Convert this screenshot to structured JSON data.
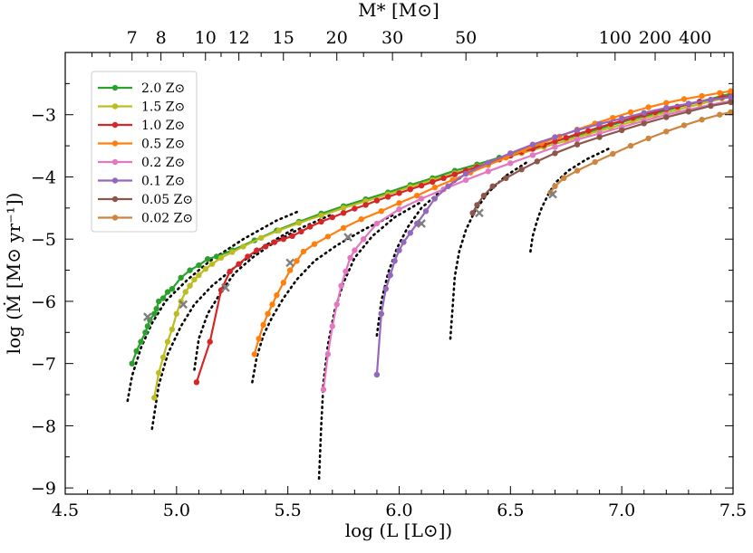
{
  "chart_data": {
    "type": "line",
    "title": "",
    "xlabel": "log (L [L⊙])",
    "ylabel": "log (Ṁ [M⊙ yr⁻¹])",
    "top_xlabel": "M* [M⊙]",
    "xlim": [
      4.5,
      7.5
    ],
    "ylim": [
      -9.1,
      -2.0
    ],
    "x_ticks": [
      4.5,
      5.0,
      5.5,
      6.0,
      6.5,
      7.0,
      7.5
    ],
    "x_tick_labels": [
      "4.5",
      "5.0",
      "5.5",
      "6.0",
      "6.5",
      "7.0",
      "7.5"
    ],
    "y_ticks": [
      -9,
      -8,
      -7,
      -6,
      -5,
      -4,
      -3
    ],
    "y_tick_labels": [
      "−9",
      "−8",
      "−7",
      "−6",
      "−5",
      "−4",
      "−3"
    ],
    "top_ticks_logL": [
      4.8,
      4.93,
      5.13,
      5.28,
      5.48,
      5.72,
      5.97,
      6.3,
      6.97,
      7.33
    ],
    "top_tick_labels": [
      "7",
      "8",
      "10",
      "12",
      "15",
      "20",
      "30",
      "50",
      "100",
      "400"
    ],
    "top_extra_labels": [
      {
        "label": "200",
        "logL": 7.15
      }
    ],
    "legend": {
      "position": "top-left"
    },
    "series": [
      {
        "name": "2.0 Z⊙",
        "color": "#2ca02c",
        "x": [
          4.8,
          4.82,
          4.84,
          4.86,
          4.87,
          4.88,
          4.9,
          4.91,
          4.92,
          4.94,
          4.96,
          4.98,
          5.02,
          5.06,
          5.1,
          5.14,
          5.18,
          5.25,
          5.35,
          5.45,
          5.55,
          5.65,
          5.75,
          5.85,
          5.95,
          6.05,
          6.15,
          6.25,
          6.35,
          6.45,
          6.55,
          6.65,
          6.75,
          6.85,
          6.95,
          7.05,
          7.15,
          7.25,
          7.35,
          7.45,
          7.49
        ],
        "y": [
          -7.0,
          -6.8,
          -6.65,
          -6.5,
          -6.4,
          -6.3,
          -6.2,
          -6.12,
          -6.0,
          -5.95,
          -5.85,
          -5.8,
          -5.62,
          -5.5,
          -5.42,
          -5.32,
          -5.28,
          -5.18,
          -5.02,
          -4.86,
          -4.72,
          -4.59,
          -4.47,
          -4.36,
          -4.25,
          -4.13,
          -4.02,
          -3.9,
          -3.8,
          -3.69,
          -3.59,
          -3.48,
          -3.38,
          -3.28,
          -3.17,
          -3.07,
          -2.98,
          -2.88,
          -2.79,
          -2.7,
          -2.66
        ],
        "track_x": [
          4.78,
          4.8,
          4.84,
          4.89,
          4.95,
          5.05,
          5.15,
          5.3,
          5.45,
          5.55
        ],
        "track_y": [
          -7.6,
          -7.2,
          -6.75,
          -6.35,
          -6.0,
          -5.65,
          -5.35,
          -5.0,
          -4.7,
          -4.55
        ]
      },
      {
        "name": "1.5 Z⊙",
        "color": "#bcbd22",
        "x": [
          4.9,
          4.92,
          4.94,
          4.96,
          4.98,
          5.0,
          5.02,
          5.04,
          5.06,
          5.08,
          5.1,
          5.13,
          5.16,
          5.2,
          5.25,
          5.3,
          5.38,
          5.46,
          5.55,
          5.65,
          5.75,
          5.85,
          5.95,
          6.05,
          6.15,
          6.25,
          6.35,
          6.45,
          6.55,
          6.65,
          6.75,
          6.85,
          6.95,
          7.05,
          7.15,
          7.25,
          7.35,
          7.45,
          7.49
        ],
        "y": [
          -7.55,
          -7.15,
          -6.9,
          -6.65,
          -6.45,
          -6.2,
          -6.0,
          -5.85,
          -5.75,
          -5.65,
          -5.58,
          -5.48,
          -5.4,
          -5.3,
          -5.21,
          -5.12,
          -4.98,
          -4.86,
          -4.74,
          -4.62,
          -4.5,
          -4.39,
          -4.28,
          -4.16,
          -4.05,
          -3.94,
          -3.83,
          -3.72,
          -3.62,
          -3.52,
          -3.42,
          -3.31,
          -3.21,
          -3.11,
          -3.01,
          -2.92,
          -2.83,
          -2.74,
          -2.7
        ],
        "track_x": [
          4.89,
          4.92,
          4.96,
          5.02,
          5.08,
          5.16,
          5.28,
          5.4,
          5.52
        ],
        "track_y": [
          -8.05,
          -7.35,
          -6.85,
          -6.4,
          -6.05,
          -5.75,
          -5.4,
          -5.1,
          -4.85
        ]
      },
      {
        "name": "1.0 Z⊙",
        "color": "#d62728",
        "x": [
          5.09,
          5.15,
          5.2,
          5.24,
          5.28,
          5.32,
          5.36,
          5.4,
          5.44,
          5.48,
          5.52,
          5.56,
          5.6,
          5.65,
          5.7,
          5.75,
          5.8,
          5.85,
          5.9,
          5.95,
          6.0,
          6.05,
          6.1,
          6.15,
          6.2,
          6.25,
          6.3,
          6.35,
          6.4,
          6.45,
          6.5,
          6.55,
          6.6,
          6.65,
          6.7,
          6.75,
          6.8,
          6.85,
          6.9,
          6.95,
          7.0,
          7.05,
          7.1,
          7.15,
          7.2,
          7.25,
          7.3,
          7.35,
          7.4,
          7.45,
          7.49
        ],
        "y": [
          -7.3,
          -6.65,
          -5.82,
          -5.52,
          -5.4,
          -5.28,
          -5.18,
          -5.12,
          -5.05,
          -5.0,
          -4.95,
          -4.88,
          -4.8,
          -4.72,
          -4.65,
          -4.58,
          -4.51,
          -4.45,
          -4.38,
          -4.32,
          -4.26,
          -4.2,
          -4.14,
          -4.08,
          -4.02,
          -3.96,
          -3.9,
          -3.84,
          -3.78,
          -3.72,
          -3.66,
          -3.6,
          -3.55,
          -3.49,
          -3.43,
          -3.37,
          -3.31,
          -3.26,
          -3.2,
          -3.15,
          -3.1,
          -3.05,
          -3.0,
          -2.96,
          -2.91,
          -2.87,
          -2.83,
          -2.79,
          -2.76,
          -2.72,
          -2.7
        ],
        "track_x": [
          5.08,
          5.1,
          5.14,
          5.2,
          5.26,
          5.34,
          5.44,
          5.56,
          5.7
        ],
        "track_y": [
          -7.1,
          -6.6,
          -6.2,
          -5.85,
          -5.55,
          -5.3,
          -5.05,
          -4.82,
          -4.6
        ]
      },
      {
        "name": "0.5 Z⊙",
        "color": "#ff7f0e",
        "x": [
          5.35,
          5.37,
          5.39,
          5.41,
          5.43,
          5.45,
          5.48,
          5.51,
          5.54,
          5.57,
          5.62,
          5.68,
          5.75,
          5.83,
          5.92,
          6.0,
          6.08,
          6.16,
          6.24,
          6.32,
          6.4,
          6.48,
          6.56,
          6.64,
          6.72,
          6.8,
          6.88,
          6.96,
          7.04,
          7.12,
          7.2,
          7.28,
          7.36,
          7.44,
          7.49
        ],
        "y": [
          -6.85,
          -6.6,
          -6.38,
          -6.2,
          -6.05,
          -5.9,
          -5.7,
          -5.5,
          -5.35,
          -5.2,
          -5.08,
          -4.96,
          -4.82,
          -4.68,
          -4.55,
          -4.42,
          -4.3,
          -4.17,
          -4.05,
          -3.93,
          -3.81,
          -3.69,
          -3.57,
          -3.46,
          -3.35,
          -3.24,
          -3.14,
          -3.05,
          -2.96,
          -2.88,
          -2.81,
          -2.75,
          -2.7,
          -2.65,
          -2.62
        ],
        "track_x": [
          5.34,
          5.36,
          5.39,
          5.43,
          5.48,
          5.54,
          5.62,
          5.72,
          5.84,
          5.98
        ],
        "track_y": [
          -7.3,
          -6.9,
          -6.55,
          -6.25,
          -5.95,
          -5.65,
          -5.35,
          -5.1,
          -4.85,
          -4.6
        ]
      },
      {
        "name": "0.2 Z⊙",
        "color": "#e377c2",
        "x": [
          5.66,
          5.68,
          5.7,
          5.72,
          5.74,
          5.76,
          5.78,
          5.8,
          5.84,
          5.9,
          6.0,
          6.1,
          6.2,
          6.3,
          6.4,
          6.5,
          6.6,
          6.7,
          6.8,
          6.9,
          7.0,
          7.1,
          7.2,
          7.3,
          7.4,
          7.49
        ],
        "y": [
          -7.42,
          -6.85,
          -6.4,
          -6.05,
          -5.75,
          -5.52,
          -5.3,
          -5.18,
          -5.0,
          -4.75,
          -4.52,
          -4.35,
          -4.2,
          -4.05,
          -3.91,
          -3.78,
          -3.65,
          -3.52,
          -3.4,
          -3.3,
          -3.2,
          -3.1,
          -3.0,
          -2.92,
          -2.84,
          -2.78
        ],
        "track_x": [
          5.64,
          5.65,
          5.66,
          5.68,
          5.71,
          5.75,
          5.8,
          5.88,
          5.98,
          6.1
        ],
        "track_y": [
          -8.85,
          -8.0,
          -7.3,
          -6.7,
          -6.15,
          -5.7,
          -5.3,
          -4.95,
          -4.65,
          -4.4
        ]
      },
      {
        "name": "0.1 Z⊙",
        "color": "#9467bd",
        "x": [
          5.9,
          5.92,
          5.94,
          5.96,
          5.98,
          6.0,
          6.02,
          6.05,
          6.08,
          6.12,
          6.16,
          6.22,
          6.3,
          6.4,
          6.5,
          6.6,
          6.7,
          6.8,
          6.9,
          7.0,
          7.1,
          7.2,
          7.3,
          7.4,
          7.49
        ],
        "y": [
          -7.18,
          -6.2,
          -5.8,
          -5.58,
          -5.35,
          -5.18,
          -5.05,
          -4.9,
          -4.75,
          -4.55,
          -4.35,
          -4.15,
          -3.95,
          -3.77,
          -3.62,
          -3.48,
          -3.36,
          -3.25,
          -3.15,
          -3.06,
          -2.97,
          -2.89,
          -2.82,
          -2.76,
          -2.72
        ],
        "track_x": [
          5.9,
          5.92,
          5.95,
          5.99,
          6.04,
          6.1,
          6.18,
          6.28
        ],
        "track_y": [
          -6.55,
          -6.0,
          -5.55,
          -5.15,
          -4.8,
          -4.5,
          -4.25,
          -4.0
        ]
      },
      {
        "name": "0.05 Z⊙",
        "color": "#8c564b",
        "x": [
          6.33,
          6.35,
          6.38,
          6.42,
          6.48,
          6.55,
          6.62,
          6.7,
          6.8,
          6.9,
          7.0,
          7.1,
          7.2,
          7.3,
          7.4,
          7.49
        ],
        "y": [
          -4.58,
          -4.45,
          -4.3,
          -4.15,
          -4.02,
          -3.88,
          -3.75,
          -3.62,
          -3.48,
          -3.36,
          -3.25,
          -3.14,
          -3.04,
          -2.95,
          -2.86,
          -2.8
        ],
        "track_x": [
          6.23,
          6.24,
          6.25,
          6.27,
          6.3,
          6.34,
          6.4,
          6.48,
          6.58
        ],
        "track_y": [
          -6.6,
          -6.1,
          -5.6,
          -5.2,
          -4.85,
          -4.55,
          -4.25,
          -3.98,
          -3.75
        ]
      },
      {
        "name": "0.02 Z⊙",
        "color": "#cd853f",
        "x": [
          6.68,
          6.7,
          6.74,
          6.8,
          6.88,
          6.96,
          7.04,
          7.12,
          7.2,
          7.28,
          7.36,
          7.44,
          7.49
        ],
        "y": [
          -4.25,
          -4.15,
          -4.02,
          -3.9,
          -3.76,
          -3.63,
          -3.5,
          -3.38,
          -3.27,
          -3.17,
          -3.08,
          -3.0,
          -2.96
        ],
        "track_x": [
          6.59,
          6.6,
          6.62,
          6.64,
          6.67,
          6.7,
          6.76,
          6.84,
          6.94
        ],
        "track_y": [
          -5.2,
          -4.95,
          -4.7,
          -4.5,
          -4.28,
          -4.1,
          -3.9,
          -3.72,
          -3.55
        ]
      }
    ],
    "cross_markers": {
      "color": "#7f7f7f",
      "x": [
        4.87,
        5.03,
        5.22,
        5.51,
        5.77,
        6.1,
        6.36,
        6.69
      ],
      "y": [
        -6.25,
        -6.05,
        -5.78,
        -5.38,
        -4.97,
        -4.75,
        -4.58,
        -4.28
      ]
    }
  }
}
